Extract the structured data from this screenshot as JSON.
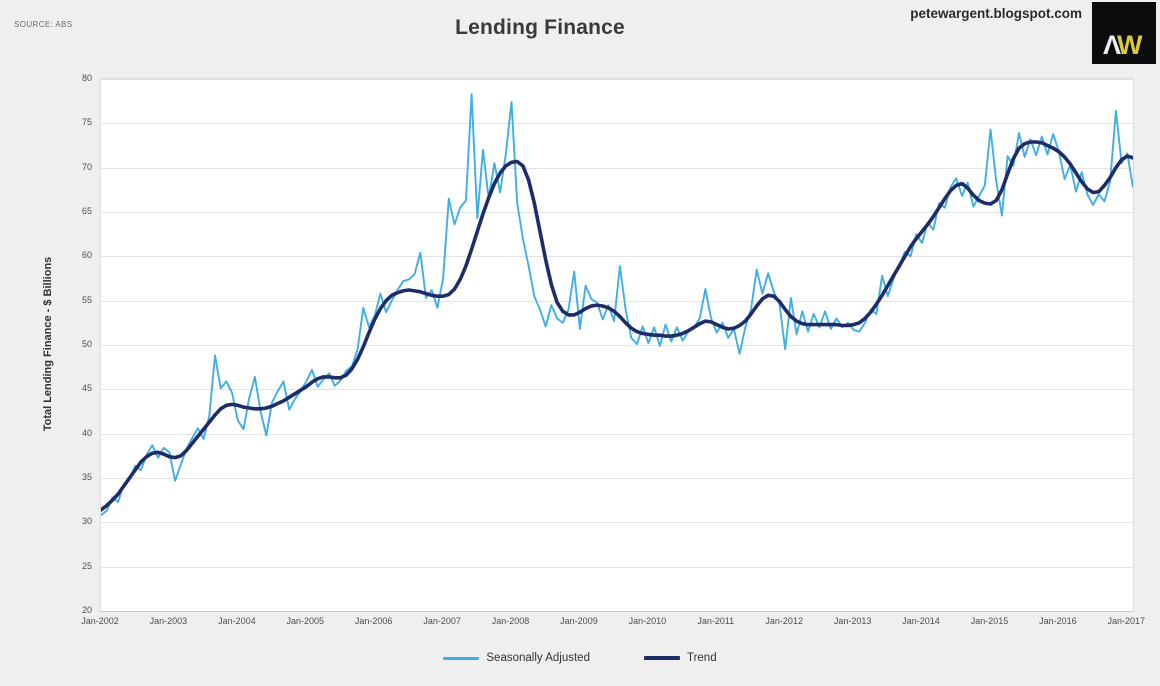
{
  "header": {
    "source_note": "SOURCE: ABS",
    "title": "Lending Finance",
    "watermark": "petewargent.blogspot.com",
    "logo": {
      "letter_a": "Λ",
      "letter_w": "W"
    }
  },
  "colors": {
    "background": "#efefef",
    "plot_background": "#ffffff",
    "gridline": "#e4e4e4",
    "axis_text": "#4d4d4d",
    "seasonally_adjusted": "#3fafe4",
    "trend": "#1e2d69",
    "logo_background": "#0c0c0c",
    "logo_w": "#d8cb3a"
  },
  "y_axis": {
    "title": "Total Lending Finance - $ Billions",
    "ticks": [
      80,
      75,
      70,
      65,
      60,
      55,
      50,
      45,
      40,
      35,
      30,
      25,
      20
    ]
  },
  "x_axis": {
    "ticks": [
      "Jan-2002",
      "Jan-2003",
      "Jan-2004",
      "Jan-2005",
      "Jan-2006",
      "Jan-2007",
      "Jan-2008",
      "Jan-2009",
      "Jan-2010",
      "Jan-2011",
      "Jan-2012",
      "Jan-2013",
      "Jan-2014",
      "Jan-2015",
      "Jan-2016",
      "Jan-2017"
    ]
  },
  "legend": {
    "items": [
      {
        "label": "Seasonally Adjusted",
        "color": "#3fafe4",
        "thickness": 3
      },
      {
        "label": "Trend",
        "color": "#1e2d69",
        "thickness": 4
      }
    ]
  },
  "chart_data": {
    "type": "line",
    "title": "Lending Finance",
    "ylabel": "Total Lending Finance - $ Billions",
    "ylim": [
      20,
      80
    ],
    "grid": "horizontal",
    "legend_position": "bottom",
    "x_start": "Jan-2002",
    "x_end": "Feb-2017",
    "frequency": "monthly",
    "x_tick_labels": [
      "Jan-2002",
      "Jan-2003",
      "Jan-2004",
      "Jan-2005",
      "Jan-2006",
      "Jan-2007",
      "Jan-2008",
      "Jan-2009",
      "Jan-2010",
      "Jan-2011",
      "Jan-2012",
      "Jan-2013",
      "Jan-2014",
      "Jan-2015",
      "Jan-2016",
      "Jan-2017"
    ],
    "series": [
      {
        "name": "Seasonally Adjusted",
        "color": "#3fafe4",
        "values": [
          30.8,
          31.3,
          32.8,
          32.3,
          34.3,
          34.8,
          36.4,
          35.9,
          37.6,
          38.7,
          37.3,
          38.4,
          37.9,
          34.7,
          36.5,
          38.3,
          39.5,
          40.6,
          39.4,
          42.0,
          48.8,
          45.1,
          45.9,
          44.6,
          41.5,
          40.5,
          44.0,
          46.4,
          42.5,
          39.8,
          43.5,
          44.8,
          45.9,
          42.7,
          43.9,
          44.8,
          45.9,
          47.2,
          45.3,
          46.1,
          46.8,
          45.4,
          46.0,
          47.1,
          47.6,
          49.5,
          54.2,
          52.0,
          53.3,
          55.8,
          53.7,
          55.0,
          56.2,
          57.2,
          57.4,
          58.0,
          60.4,
          55.3,
          56.2,
          54.2,
          57.5,
          66.5,
          63.6,
          65.5,
          66.3,
          78.3,
          64.3,
          72.0,
          66.5,
          70.5,
          67.2,
          71.5,
          77.4,
          66.0,
          62.0,
          58.9,
          55.5,
          54.0,
          52.1,
          54.5,
          53.0,
          52.5,
          54.0,
          58.3,
          51.8,
          56.7,
          55.2,
          54.8,
          52.9,
          54.5,
          52.7,
          58.9,
          54.0,
          50.8,
          50.1,
          52.1,
          50.2,
          52.0,
          49.9,
          52.3,
          50.4,
          52.0,
          50.5,
          51.5,
          52.0,
          53.0,
          56.3,
          53.0,
          51.4,
          52.5,
          50.8,
          51.8,
          49.0,
          52.0,
          54.0,
          58.5,
          55.8,
          58.1,
          56.0,
          54.6,
          49.5,
          55.3,
          51.2,
          53.8,
          51.5,
          53.5,
          52.0,
          53.8,
          51.8,
          53.0,
          52.0,
          52.5,
          51.7,
          51.5,
          52.5,
          54.0,
          53.5,
          57.8,
          55.5,
          57.5,
          59.0,
          60.5,
          60.0,
          62.5,
          61.5,
          63.8,
          63.0,
          66.0,
          65.5,
          67.8,
          68.8,
          66.8,
          68.3,
          65.6,
          66.8,
          68.0,
          74.3,
          68.5,
          64.6,
          71.3,
          70.2,
          73.9,
          71.2,
          73.2,
          71.4,
          73.5,
          71.5,
          73.8,
          71.8,
          68.7,
          70.3,
          67.3,
          69.5,
          67.0,
          65.8,
          67.0,
          66.2,
          68.5,
          76.4,
          70.5,
          71.6,
          67.8
        ]
      },
      {
        "name": "Trend",
        "color": "#1e2d69",
        "values": [
          31.4,
          31.9,
          32.5,
          33.2,
          34.1,
          35.0,
          35.9,
          36.8,
          37.4,
          37.8,
          37.9,
          37.7,
          37.4,
          37.3,
          37.5,
          38.1,
          38.9,
          39.7,
          40.5,
          41.3,
          42.1,
          42.8,
          43.2,
          43.3,
          43.2,
          43.0,
          42.9,
          42.8,
          42.8,
          42.9,
          43.1,
          43.4,
          43.7,
          44.1,
          44.5,
          44.9,
          45.3,
          45.8,
          46.2,
          46.4,
          46.4,
          46.3,
          46.3,
          46.6,
          47.3,
          48.4,
          49.8,
          51.4,
          52.9,
          54.1,
          55.0,
          55.6,
          55.9,
          56.1,
          56.2,
          56.1,
          56.0,
          55.8,
          55.6,
          55.5,
          55.5,
          55.7,
          56.3,
          57.4,
          58.9,
          60.8,
          62.8,
          64.8,
          66.6,
          68.2,
          69.4,
          70.2,
          70.6,
          70.7,
          70.2,
          68.6,
          66.0,
          62.8,
          59.6,
          56.8,
          54.8,
          53.8,
          53.4,
          53.4,
          53.7,
          54.1,
          54.4,
          54.5,
          54.4,
          54.2,
          53.8,
          53.2,
          52.5,
          51.9,
          51.5,
          51.3,
          51.2,
          51.1,
          51.1,
          51.0,
          51.0,
          51.1,
          51.3,
          51.6,
          52.0,
          52.4,
          52.7,
          52.6,
          52.3,
          52.0,
          51.8,
          51.9,
          52.2,
          52.7,
          53.5,
          54.4,
          55.2,
          55.6,
          55.5,
          54.9,
          54.0,
          53.2,
          52.7,
          52.4,
          52.3,
          52.3,
          52.3,
          52.3,
          52.3,
          52.3,
          52.2,
          52.2,
          52.3,
          52.5,
          53.0,
          53.7,
          54.6,
          55.6,
          56.7,
          57.8,
          58.9,
          60.0,
          61.1,
          62.0,
          62.8,
          63.6,
          64.5,
          65.5,
          66.5,
          67.4,
          68.0,
          68.2,
          67.7,
          66.9,
          66.3,
          66.0,
          65.9,
          66.3,
          67.5,
          69.3,
          71.0,
          72.2,
          72.7,
          72.9,
          72.9,
          72.8,
          72.5,
          72.2,
          71.8,
          71.2,
          70.4,
          69.4,
          68.4,
          67.6,
          67.2,
          67.3,
          68.0,
          68.9,
          70.0,
          70.9,
          71.3,
          71.1
        ]
      }
    ]
  }
}
